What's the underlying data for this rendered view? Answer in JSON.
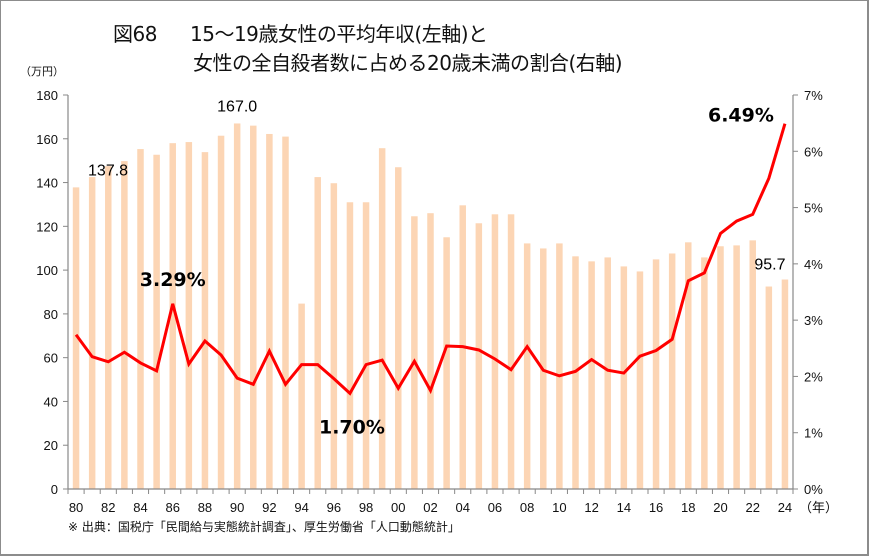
{
  "header": {
    "figure_number": "図68",
    "title_line1": "15～19歳女性の平均年収(左軸)と",
    "title_line2": "女性の全自殺者数に占める20歳未満の割合(右軸)"
  },
  "footer": {
    "source": "※ 出典：国税庁「民間給与実態統計調査」、厚生労働省「人口動態統計」"
  },
  "colors": {
    "bar": "#FCD5B4",
    "line": "#FF0000",
    "axis": "#888888"
  },
  "chart_data": {
    "type": "bar+line",
    "title": "図68　15～19歳女性の平均年収(左軸)と 女性の全自殺者数に占める20歳未満の割合(右軸)",
    "xlabel": "（年）",
    "ylabel_left": "（万円）",
    "ylim_left": [
      0,
      180
    ],
    "ylim_right": [
      0,
      7
    ],
    "yticks_left": [
      "0",
      "20",
      "40",
      "60",
      "80",
      "100",
      "120",
      "140",
      "160",
      "180"
    ],
    "yticks_right": [
      "0%",
      "1%",
      "2%",
      "3%",
      "4%",
      "5%",
      "6%",
      "7%"
    ],
    "categories": [
      "80",
      "81",
      "82",
      "83",
      "84",
      "85",
      "86",
      "87",
      "88",
      "89",
      "90",
      "91",
      "92",
      "93",
      "94",
      "95",
      "96",
      "97",
      "98",
      "99",
      "00",
      "01",
      "02",
      "03",
      "04",
      "05",
      "06",
      "07",
      "08",
      "09",
      "10",
      "11",
      "12",
      "13",
      "14",
      "15",
      "16",
      "17",
      "18",
      "19",
      "20",
      "21",
      "22",
      "23",
      "24"
    ],
    "xtick_labels": [
      "80",
      "82",
      "84",
      "86",
      "88",
      "90",
      "92",
      "94",
      "96",
      "98",
      "00",
      "02",
      "04",
      "06",
      "08",
      "10",
      "12",
      "14",
      "16",
      "18",
      "20",
      "22",
      "24"
    ],
    "series": [
      {
        "name": "15～19歳女性の平均年収",
        "type": "bar",
        "axis": "left",
        "unit": "万円",
        "values": [
          137.8,
          142.5,
          147.5,
          149.8,
          155.3,
          152.7,
          158.0,
          158.5,
          153.9,
          161.4,
          167.0,
          166.0,
          162.2,
          161.0,
          84.7,
          142.5,
          139.7,
          131.0,
          131.0,
          155.7,
          147.0,
          124.6,
          126.0,
          115.0,
          129.6,
          121.4,
          125.5,
          125.5,
          112.2,
          109.9,
          112.2,
          106.3,
          104.0,
          105.8,
          101.7,
          99.4,
          104.9,
          107.6,
          112.7,
          105.8,
          110.9,
          111.3,
          113.6,
          92.5,
          95.7
        ]
      },
      {
        "name": "女性の全自殺者数に占める20歳未満の割合",
        "type": "line",
        "axis": "right",
        "unit": "%",
        "values": [
          2.74,
          2.35,
          2.26,
          2.43,
          2.24,
          2.1,
          3.29,
          2.22,
          2.63,
          2.38,
          1.97,
          1.86,
          2.45,
          1.86,
          2.21,
          2.21,
          1.96,
          1.7,
          2.21,
          2.29,
          1.79,
          2.27,
          1.75,
          2.54,
          2.53,
          2.47,
          2.31,
          2.12,
          2.53,
          2.11,
          2.01,
          2.09,
          2.3,
          2.11,
          2.06,
          2.36,
          2.46,
          2.66,
          3.7,
          3.84,
          4.54,
          4.76,
          4.88,
          5.52,
          6.49
        ]
      }
    ],
    "annotations": [
      {
        "text": "137.8",
        "series": 0,
        "category": "80",
        "style": "normal"
      },
      {
        "text": "167.0",
        "series": 0,
        "category": "90",
        "style": "normal"
      },
      {
        "text": "95.7",
        "series": 0,
        "category": "24",
        "style": "normal"
      },
      {
        "text": "3.29%",
        "series": 1,
        "category": "86",
        "style": "bold"
      },
      {
        "text": "1.70%",
        "series": 1,
        "category": "97",
        "style": "bold"
      },
      {
        "text": "6.49%",
        "series": 1,
        "category": "24",
        "style": "bold"
      }
    ],
    "grid": false
  }
}
